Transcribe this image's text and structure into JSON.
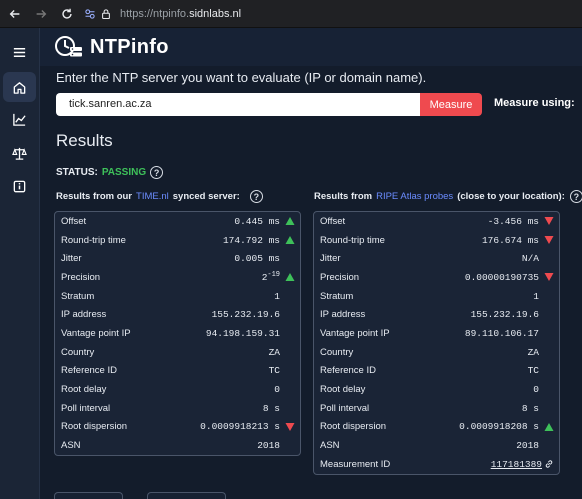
{
  "browser": {
    "url_prefix": "https://ntpinfo.",
    "url_domain": "sidnlabs.nl"
  },
  "app": {
    "title": "NTPinfo"
  },
  "sidebar": {
    "items": [
      {
        "icon": "hamburger-icon"
      },
      {
        "icon": "home-icon",
        "active": true
      },
      {
        "icon": "chart-icon"
      },
      {
        "icon": "scale-icon"
      },
      {
        "icon": "info-icon"
      }
    ]
  },
  "form": {
    "prompt": "Enter the NTP server you want to evaluate (IP or domain name).",
    "server_value": "tick.sanren.ac.za",
    "measure_label": "Measure",
    "measure_using_label": "Measure using:"
  },
  "results": {
    "title": "Results",
    "status_label": "STATUS:",
    "status_value": "PASSING",
    "status_color": "#3ec15a",
    "left": {
      "head_pre": "Results from our",
      "head_link": "TIME.nl",
      "head_post": "synced server:",
      "rows": [
        {
          "label": "Offset",
          "value": "0.445 ms",
          "indicator": "up"
        },
        {
          "label": "Round-trip time",
          "value": "174.792 ms",
          "indicator": "up"
        },
        {
          "label": "Jitter",
          "value": "0.005 ms",
          "indicator": "none"
        },
        {
          "label": "Precision",
          "value": "2",
          "sup": "-19",
          "indicator": "up"
        },
        {
          "label": "Stratum",
          "value": "1",
          "indicator": "none"
        },
        {
          "label": "IP address",
          "value": "155.232.19.6",
          "indicator": "none"
        },
        {
          "label": "Vantage point IP",
          "value": "94.198.159.31",
          "indicator": "none"
        },
        {
          "label": "Country",
          "value": "ZA",
          "indicator": "none"
        },
        {
          "label": "Reference ID",
          "value": "TC",
          "indicator": "none"
        },
        {
          "label": "Root delay",
          "value": "0",
          "indicator": "none"
        },
        {
          "label": "Poll interval",
          "value": "8 s",
          "indicator": "none"
        },
        {
          "label": "Root dispersion",
          "value": "0.0009918213 s",
          "indicator": "down"
        },
        {
          "label": "ASN",
          "value": "2018",
          "indicator": "none"
        }
      ]
    },
    "right": {
      "head_pre": "Results from",
      "head_link": "RIPE Atlas probes",
      "head_post": "(close to your location):",
      "rows": [
        {
          "label": "Offset",
          "value": "-3.456 ms",
          "indicator": "down"
        },
        {
          "label": "Round-trip time",
          "value": "176.674 ms",
          "indicator": "down"
        },
        {
          "label": "Jitter",
          "value": "N/A",
          "indicator": "none"
        },
        {
          "label": "Precision",
          "value": "0.00000190735",
          "indicator": "down"
        },
        {
          "label": "Stratum",
          "value": "1",
          "indicator": "none"
        },
        {
          "label": "IP address",
          "value": "155.232.19.6",
          "indicator": "none"
        },
        {
          "label": "Vantage point IP",
          "value": "89.110.106.17",
          "indicator": "none"
        },
        {
          "label": "Country",
          "value": "ZA",
          "indicator": "none"
        },
        {
          "label": "Reference ID",
          "value": "TC",
          "indicator": "none"
        },
        {
          "label": "Root delay",
          "value": "0",
          "indicator": "none"
        },
        {
          "label": "Poll interval",
          "value": "8 s",
          "indicator": "none"
        },
        {
          "label": "Root dispersion",
          "value": "0.0009918208 s",
          "indicator": "up"
        },
        {
          "label": "ASN",
          "value": "2018",
          "indicator": "none"
        },
        {
          "label": "Measurement ID",
          "value": "117181389",
          "indicator": "link"
        }
      ]
    }
  },
  "colors": {
    "up": "#3ec15a",
    "down": "#ef4a4f",
    "link": "#6b8cff",
    "accent": "#ef4a4f"
  }
}
